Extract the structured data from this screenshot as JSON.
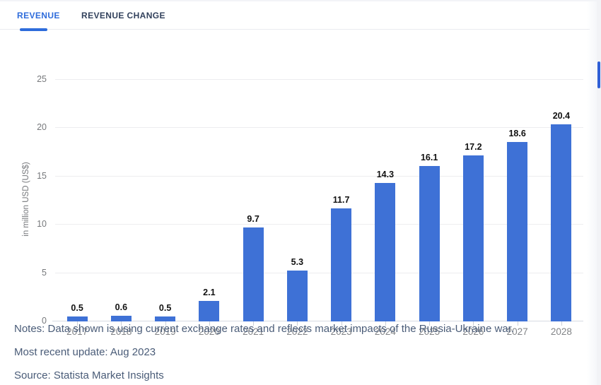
{
  "tabs": [
    {
      "label": "REVENUE",
      "active": true
    },
    {
      "label": "REVENUE CHANGE",
      "active": false
    }
  ],
  "chart_data": {
    "type": "bar",
    "categories": [
      "2017",
      "2018",
      "2019",
      "2020",
      "2021",
      "2022",
      "2023",
      "2024",
      "2025",
      "2026",
      "2027",
      "2028"
    ],
    "values": [
      0.5,
      0.6,
      0.5,
      2.1,
      9.7,
      5.3,
      11.7,
      14.3,
      16.1,
      17.2,
      18.6,
      20.4
    ],
    "title": "",
    "xlabel": "",
    "ylabel": "in million USD (US$)",
    "ylim": [
      0,
      25
    ],
    "yticks": [
      0,
      5,
      10,
      15,
      20,
      25
    ],
    "grid": "horizontal",
    "legend": "none",
    "bar_color": "#3e71d6",
    "value_labels_shown": true
  },
  "footer": {
    "notes": "Notes: Data shown is using current exchange rates and reflects market impacts of the Russia-Ukraine war.",
    "update": "Most recent update: Aug 2023",
    "source": "Source: Statista Market Insights"
  },
  "colors": {
    "accent_blue": "#2e6cdb",
    "bar_blue": "#3e71d6",
    "tab_inactive_text": "#32415c",
    "notes_text": "#4a5c78",
    "axis_text": "#77797c",
    "gridline": "#ededef",
    "baseline": "#d7dbe2",
    "scrollbar_thumb": "#2f5fd6"
  }
}
